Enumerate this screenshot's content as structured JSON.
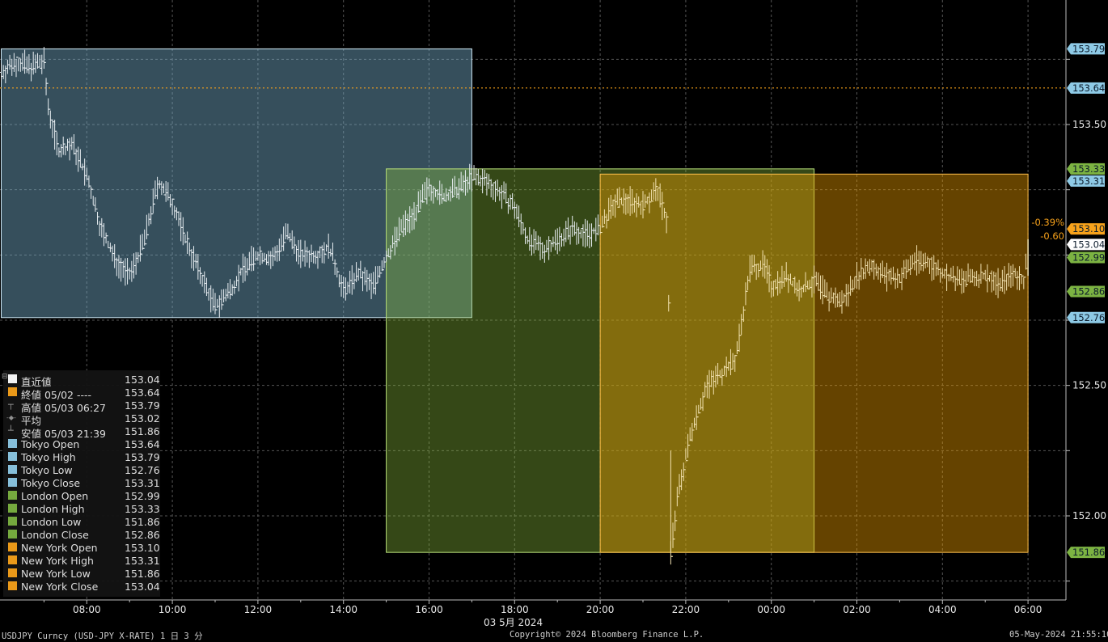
{
  "chart_data": {
    "type": "line",
    "title": "",
    "xlabel": "03 5月 2024",
    "ylabel": "",
    "x_ticks": [
      "08:00",
      "10:00",
      "12:00",
      "14:00",
      "16:00",
      "18:00",
      "20:00",
      "22:00",
      "00:00",
      "02:00",
      "04:00",
      "06:00"
    ],
    "y_ticks": [
      "153.50",
      "152.50",
      "152.00"
    ],
    "ylim": [
      151.75,
      153.93
    ],
    "grid": true,
    "series": [
      {
        "name": "USDJPY",
        "points": [
          [
            "06:00",
            153.7
          ],
          [
            "06:20",
            153.74
          ],
          [
            "06:40",
            153.72
          ],
          [
            "07:00",
            153.74
          ],
          [
            "07:05",
            153.58
          ],
          [
            "07:20",
            153.4
          ],
          [
            "07:40",
            153.42
          ],
          [
            "08:00",
            153.3
          ],
          [
            "08:20",
            153.1
          ],
          [
            "08:40",
            152.98
          ],
          [
            "09:00",
            152.92
          ],
          [
            "09:20",
            153.05
          ],
          [
            "09:40",
            153.28
          ],
          [
            "10:00",
            153.2
          ],
          [
            "10:20",
            153.05
          ],
          [
            "10:40",
            152.92
          ],
          [
            "11:00",
            152.8
          ],
          [
            "11:20",
            152.86
          ],
          [
            "11:40",
            152.95
          ],
          [
            "12:00",
            153.0
          ],
          [
            "12:20",
            152.98
          ],
          [
            "12:40",
            153.08
          ],
          [
            "13:00",
            153.0
          ],
          [
            "13:20",
            153.0
          ],
          [
            "13:40",
            153.03
          ],
          [
            "14:00",
            152.86
          ],
          [
            "14:20",
            152.93
          ],
          [
            "14:40",
            152.88
          ],
          [
            "15:00",
            152.99
          ],
          [
            "15:20",
            153.1
          ],
          [
            "15:40",
            153.16
          ],
          [
            "16:00",
            153.26
          ],
          [
            "16:20",
            153.22
          ],
          [
            "16:40",
            153.25
          ],
          [
            "17:00",
            153.3
          ],
          [
            "17:20",
            153.28
          ],
          [
            "17:40",
            153.24
          ],
          [
            "18:00",
            153.18
          ],
          [
            "18:20",
            153.05
          ],
          [
            "18:40",
            153.02
          ],
          [
            "19:00",
            153.06
          ],
          [
            "19:20",
            153.1
          ],
          [
            "19:40",
            153.08
          ],
          [
            "20:00",
            153.1
          ],
          [
            "20:20",
            153.2
          ],
          [
            "20:40",
            153.21
          ],
          [
            "21:00",
            153.19
          ],
          [
            "21:20",
            153.25
          ],
          [
            "21:35",
            153.12
          ],
          [
            "21:39",
            151.86
          ],
          [
            "21:50",
            152.1
          ],
          [
            "22:10",
            152.35
          ],
          [
            "22:30",
            152.5
          ],
          [
            "22:50",
            152.55
          ],
          [
            "23:10",
            152.6
          ],
          [
            "23:30",
            152.95
          ],
          [
            "23:50",
            152.96
          ],
          [
            "00:00",
            152.88
          ],
          [
            "00:20",
            152.92
          ],
          [
            "00:40",
            152.86
          ],
          [
            "01:00",
            152.9
          ],
          [
            "01:20",
            152.84
          ],
          [
            "01:40",
            152.82
          ],
          [
            "02:00",
            152.92
          ],
          [
            "02:20",
            152.96
          ],
          [
            "02:40",
            152.92
          ],
          [
            "03:00",
            152.91
          ],
          [
            "03:20",
            152.98
          ],
          [
            "03:40",
            152.97
          ],
          [
            "04:00",
            152.93
          ],
          [
            "04:20",
            152.9
          ],
          [
            "04:40",
            152.91
          ],
          [
            "05:00",
            152.92
          ],
          [
            "05:20",
            152.89
          ],
          [
            "05:40",
            152.93
          ],
          [
            "05:55",
            152.9
          ],
          [
            "06:00",
            153.04
          ]
        ]
      }
    ],
    "sessions": [
      {
        "name": "Tokyo",
        "start": "06:00",
        "end": "17:00",
        "high": 153.79,
        "low": 152.76,
        "color": "#a8d8f0"
      },
      {
        "name": "London",
        "start": "15:00",
        "end": "01:00",
        "high": 153.33,
        "low": 151.86,
        "color": "#8bc34a"
      },
      {
        "name": "New York",
        "start": "20:00",
        "end": "06:00",
        "high": 153.31,
        "low": 151.86,
        "color": "#ffa500"
      }
    ],
    "prev_close_line": 153.64,
    "right_labels": [
      {
        "text": "153.79",
        "value": 153.79,
        "color": "#8ecae6"
      },
      {
        "text": "153.64",
        "value": 153.64,
        "color": "#8ecae6"
      },
      {
        "text": "153.33",
        "value": 153.33,
        "color": "#7cb342"
      },
      {
        "text": "153.31",
        "value": 153.31,
        "color": "#8ecae6"
      },
      {
        "text": "153.10",
        "value": 153.1,
        "color": "#f7a21b"
      },
      {
        "text": "153.04",
        "value": 153.04,
        "color": "#ffffff"
      },
      {
        "text": "152.99",
        "value": 152.99,
        "color": "#7cb342"
      },
      {
        "text": "152.86",
        "value": 152.86,
        "color": "#7cb342"
      },
      {
        "text": "152.76",
        "value": 152.76,
        "color": "#8ecae6"
      },
      {
        "text": "151.86",
        "value": 151.86,
        "color": "#7cb342"
      }
    ],
    "change_labels": [
      "-0.39%",
      "-0.60"
    ]
  },
  "legend": [
    {
      "label": "直近値",
      "value": "153.04",
      "color": "#ffffff",
      "kind": "square"
    },
    {
      "label": "終値 05/02 ----",
      "value": "153.64",
      "color": "#f7a21b",
      "kind": "square"
    },
    {
      "label": "高値 05/03 06:27",
      "value": "153.79",
      "color": "#9a9a9a",
      "kind": "high"
    },
    {
      "label": "平均",
      "value": "153.02",
      "color": "#9a9a9a",
      "kind": "avg"
    },
    {
      "label": "安値 05/03 21:39",
      "value": "151.86",
      "color": "#9a9a9a",
      "kind": "low"
    },
    {
      "label": "Tokyo Open",
      "value": "153.64",
      "color": "#8ecae6",
      "kind": "square"
    },
    {
      "label": "Tokyo High",
      "value": "153.79",
      "color": "#8ecae6",
      "kind": "square"
    },
    {
      "label": "Tokyo Low",
      "value": "152.76",
      "color": "#8ecae6",
      "kind": "square"
    },
    {
      "label": "Tokyo Close",
      "value": "153.31",
      "color": "#8ecae6",
      "kind": "square"
    },
    {
      "label": "London Open",
      "value": "152.99",
      "color": "#7cb342",
      "kind": "square"
    },
    {
      "label": "London High",
      "value": "153.33",
      "color": "#7cb342",
      "kind": "square"
    },
    {
      "label": "London Low",
      "value": "151.86",
      "color": "#7cb342",
      "kind": "square"
    },
    {
      "label": "London Close",
      "value": "152.86",
      "color": "#7cb342",
      "kind": "square"
    },
    {
      "label": "New York Open",
      "value": "153.10",
      "color": "#f7a21b",
      "kind": "square"
    },
    {
      "label": "New York High",
      "value": "153.31",
      "color": "#f7a21b",
      "kind": "square"
    },
    {
      "label": "New York Low",
      "value": "151.86",
      "color": "#f7a21b",
      "kind": "square"
    },
    {
      "label": "New York Close",
      "value": "153.04",
      "color": "#f7a21b",
      "kind": "square"
    }
  ],
  "footer": {
    "left": "USDJPY Curncy (USD-JPY X-RATE) 1 日 3 分",
    "center": "Copyright© 2024 Bloomberg Finance L.P.",
    "right": "05-May-2024 21:55:10"
  }
}
